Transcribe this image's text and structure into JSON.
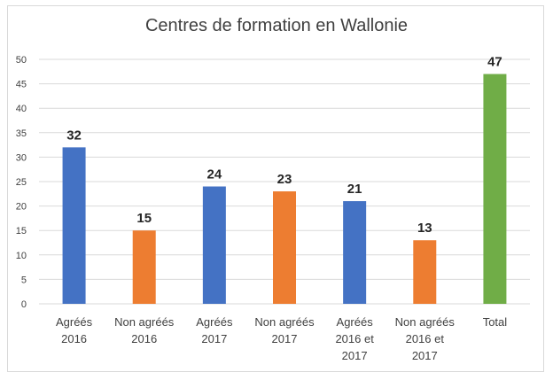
{
  "chart_data": {
    "type": "bar",
    "title": "Centres de formation en Wallonie",
    "categories": [
      [
        "Agréés",
        "2016"
      ],
      [
        "Non agréés",
        "2016"
      ],
      [
        "Agréés",
        "2017"
      ],
      [
        "Non agréés",
        "2017"
      ],
      [
        "Agréés",
        "2016 et",
        "2017"
      ],
      [
        "Non agréés",
        "2016 et",
        "2017"
      ],
      [
        "Total"
      ]
    ],
    "values": [
      32,
      15,
      24,
      23,
      21,
      13,
      47
    ],
    "colors": [
      "#4472c4",
      "#ed7d31",
      "#4472c4",
      "#ed7d31",
      "#4472c4",
      "#ed7d31",
      "#70ad47"
    ],
    "ylim": [
      0,
      50
    ],
    "yticks": [
      0,
      5,
      10,
      15,
      20,
      25,
      30,
      35,
      40,
      45,
      50
    ],
    "grid": true,
    "data_labels": true,
    "legend": "none",
    "xlabel": "",
    "ylabel": ""
  }
}
